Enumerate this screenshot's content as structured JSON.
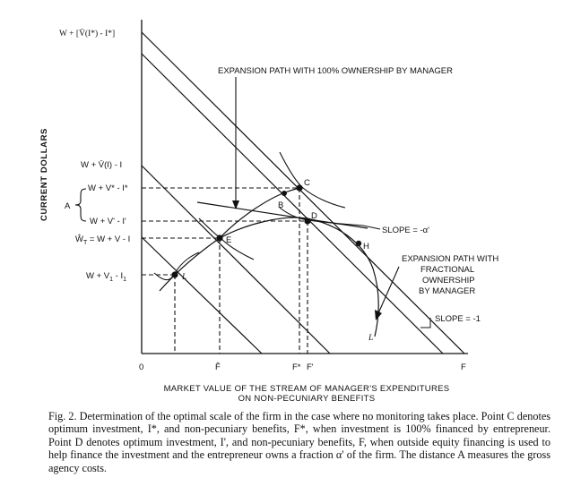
{
  "y_axis_title": "CURRENT DOLLARS",
  "x_axis_title_line1": "MARKET VALUE OF THE STREAM OF MANAGER'S EXPENDITURES",
  "x_axis_title_line2": "ON NON-PECUNIARY BENEFITS",
  "y_labels": {
    "top": "W + [V̄(I*) - I*]",
    "vbar_i": "W + V̄(I) - I",
    "v_star": "W + V* - I*",
    "v_prime": "W + V' - I'",
    "w_t": "Ŵ",
    "w_t_sub": "T",
    "w_t_rest": " = W + V - I",
    "v1": "W + V",
    "v1_sub": "1",
    "v1_mid": " - I",
    "v1_sub2": "1"
  },
  "brace_label": "A",
  "x_labels": {
    "origin": "0",
    "f_hat": "F̂",
    "f_star": "F*",
    "f_prime": "F'",
    "f": "F"
  },
  "points": {
    "c": "C",
    "b": "B",
    "d": "D",
    "e": "E",
    "l_point": "L",
    "h": "H",
    "l_end": "L"
  },
  "annotations": {
    "expansion_full": "EXPANSION PATH WITH 100% OWNERSHIP BY MANAGER",
    "slope_alpha": "SLOPE = -α'",
    "expansion_fractional_1": "EXPANSION PATH WITH",
    "expansion_fractional_2": "FRACTIONAL",
    "expansion_fractional_3": "OWNERSHIP",
    "expansion_fractional_4": "BY MANAGER",
    "slope_minus_one": "SLOPE = -1"
  },
  "caption": "Fig. 2. Determination of the optimal scale of the firm in the case where no monitoring takes place. Point C denotes optimum investment, I*, and non-pecuniary benefits, F*, when investment is 100% financed by entrepreneur. Point D denotes optimum investment, I', and non-pecuniary benefits, F, when outside equity financing is used to help finance the investment and the entrepreneur owns a fraction α' of the firm. The distance A measures the gross agency costs."
}
